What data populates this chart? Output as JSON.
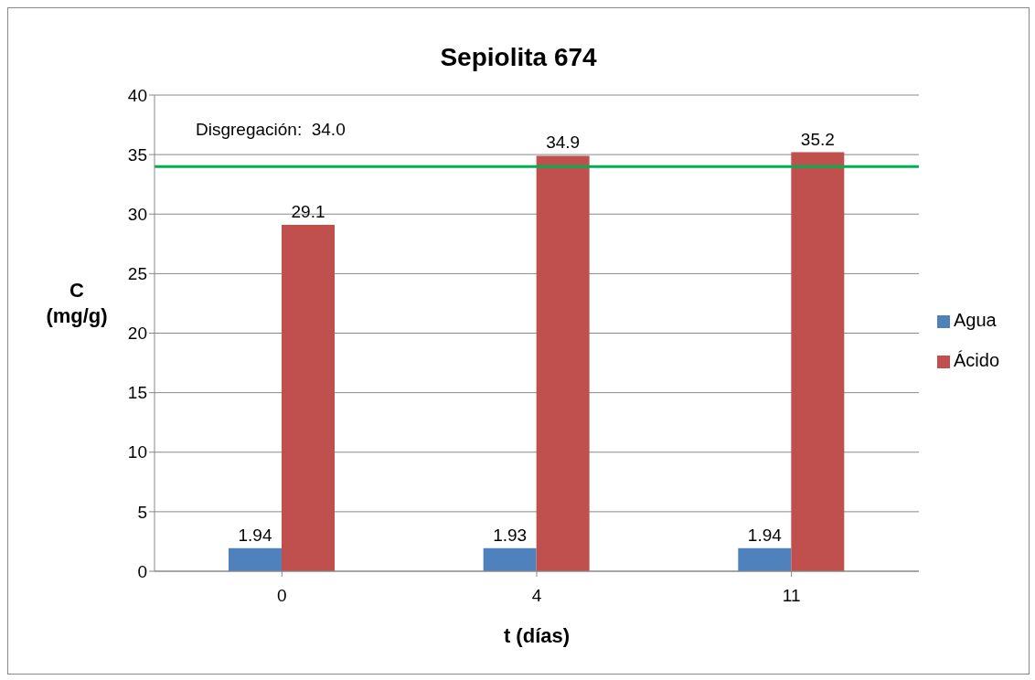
{
  "chart_data": {
    "type": "bar",
    "title": "Sepiolita 674",
    "xlabel": "t (días)",
    "ylabel": "C (mg/g)",
    "categories": [
      "0",
      "4",
      "11"
    ],
    "series": [
      {
        "name": "Agua",
        "color": "#4f81bd",
        "values": [
          1.94,
          1.93,
          1.94
        ]
      },
      {
        "name": "Ácido",
        "color": "#c0504d",
        "values": [
          29.1,
          34.9,
          35.2
        ]
      }
    ],
    "ylim": [
      0,
      40
    ],
    "yticks": [
      0,
      5,
      10,
      15,
      20,
      25,
      30,
      35,
      40
    ],
    "ref_lines": [
      {
        "axis": "y",
        "value": 34.0,
        "label": "Disgregación:  34.0",
        "color": "#00b050"
      }
    ],
    "data_labels": true,
    "grid": "y",
    "legend": "right"
  }
}
